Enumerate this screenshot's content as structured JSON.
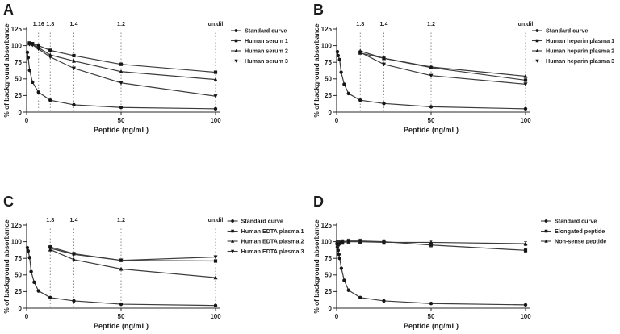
{
  "figure": {
    "background": "#ffffff",
    "axis_color": "#2a2a2a",
    "line_color": "#3c3c3c",
    "marker_color": "#161616",
    "dotted_color": "#7f7f7f",
    "text_color": "#1f1f1f"
  },
  "chart_data": [
    {
      "panel": "A",
      "type": "line",
      "title": "",
      "xlabel": "Peptide (ng/mL)",
      "ylabel": "% of background absorbance",
      "xlim": [
        0,
        100
      ],
      "ylim": [
        0,
        125
      ],
      "xticks": [
        0,
        50,
        100
      ],
      "yticks": [
        0,
        25,
        50,
        75,
        100,
        125
      ],
      "grid": false,
      "legend_position": "right",
      "dilution_marks": [
        {
          "label": "1:16",
          "x": 6.3
        },
        {
          "label": "1:8",
          "x": 12.5
        },
        {
          "label": "1:4",
          "x": 25
        },
        {
          "label": "1:2",
          "x": 50
        },
        {
          "label": "un.dil",
          "x": 100
        }
      ],
      "series": [
        {
          "name": "Standard curve",
          "marker": "circle",
          "x": [
            0.4,
            0.8,
            1.6,
            3.1,
            6.3,
            12.5,
            25,
            50,
            100
          ],
          "y": [
            90,
            82,
            63,
            45,
            30,
            18,
            11,
            7,
            5
          ]
        },
        {
          "name": "Human serum 1",
          "marker": "square",
          "x": [
            1.5,
            3.1,
            6.3,
            12.5,
            25,
            50,
            100
          ],
          "y": [
            104,
            103,
            100,
            93,
            85,
            72,
            60
          ]
        },
        {
          "name": "Human serum 2",
          "marker": "triangle-up",
          "x": [
            1.5,
            3.1,
            6.3,
            12.5,
            25,
            50,
            100
          ],
          "y": [
            103,
            102,
            97,
            86,
            77,
            61,
            49
          ]
        },
        {
          "name": "Human serum 3",
          "marker": "triangle-down",
          "x": [
            1.5,
            3.1,
            6.3,
            12.5,
            25,
            50,
            100
          ],
          "y": [
            102,
            101,
            95,
            83,
            66,
            44,
            24
          ]
        }
      ]
    },
    {
      "panel": "B",
      "type": "line",
      "title": "",
      "xlabel": "Peptide (ng/mL)",
      "ylabel": "% of background absorbance",
      "xlim": [
        0,
        100
      ],
      "ylim": [
        0,
        125
      ],
      "xticks": [
        0,
        50,
        100
      ],
      "yticks": [
        0,
        25,
        50,
        75,
        100,
        125
      ],
      "grid": false,
      "legend_position": "right",
      "dilution_marks": [
        {
          "label": "1:8",
          "x": 12.5
        },
        {
          "label": "1:4",
          "x": 25
        },
        {
          "label": "1:2",
          "x": 50
        },
        {
          "label": "un.dil",
          "x": 100
        }
      ],
      "series": [
        {
          "name": "Standard curve",
          "marker": "circle",
          "x": [
            0.4,
            0.8,
            1.6,
            2.4,
            4,
            6.3,
            12.5,
            25,
            50,
            100
          ],
          "y": [
            91,
            85,
            79,
            60,
            42,
            28,
            18,
            13,
            8,
            5
          ]
        },
        {
          "name": "Human heparin plasma 1",
          "marker": "square",
          "x": [
            12.5,
            25,
            50,
            100
          ],
          "y": [
            89,
            81,
            67,
            48
          ]
        },
        {
          "name": "Human heparin plasma 2",
          "marker": "triangle-up",
          "x": [
            12.5,
            25,
            50,
            100
          ],
          "y": [
            92,
            81,
            68,
            54
          ]
        },
        {
          "name": "Human heparin plasma 3",
          "marker": "triangle-down",
          "x": [
            12.5,
            25,
            50,
            100
          ],
          "y": [
            90,
            72,
            55,
            42
          ]
        }
      ]
    },
    {
      "panel": "C",
      "type": "line",
      "title": "",
      "xlabel": "Peptide (ng/mL)",
      "ylabel": "% of background absorbance",
      "xlim": [
        0,
        100
      ],
      "ylim": [
        0,
        125
      ],
      "xticks": [
        0,
        50,
        100
      ],
      "yticks": [
        0,
        25,
        50,
        75,
        100,
        125
      ],
      "grid": false,
      "legend_position": "right",
      "dilution_marks": [
        {
          "label": "1:8",
          "x": 12.5
        },
        {
          "label": "1:4",
          "x": 25
        },
        {
          "label": "1:2",
          "x": 50
        },
        {
          "label": "un.dil",
          "x": 100
        }
      ],
      "series": [
        {
          "name": "Standard curve",
          "marker": "circle",
          "x": [
            0.4,
            0.8,
            1.6,
            2.4,
            4,
            6.3,
            12.5,
            25,
            50,
            100
          ],
          "y": [
            91,
            86,
            76,
            55,
            39,
            26,
            16,
            11,
            6,
            4
          ]
        },
        {
          "name": "Human EDTA plasma 1",
          "marker": "square",
          "x": [
            12.5,
            25,
            50,
            100
          ],
          "y": [
            92,
            82,
            72,
            71
          ]
        },
        {
          "name": "Human EDTA plasma 2",
          "marker": "triangle-up",
          "x": [
            12.5,
            25,
            50,
            100
          ],
          "y": [
            88,
            73,
            59,
            46
          ]
        },
        {
          "name": "Human EDTA plasma 3",
          "marker": "triangle-down",
          "x": [
            12.5,
            25,
            50,
            100
          ],
          "y": [
            90,
            81,
            72,
            77
          ]
        }
      ]
    },
    {
      "panel": "D",
      "type": "line",
      "title": "",
      "xlabel": "Peptide (ng/mL)",
      "ylabel": "% of background absorbance",
      "xlim": [
        0,
        100
      ],
      "ylim": [
        0,
        125
      ],
      "xticks": [
        0,
        50,
        100
      ],
      "yticks": [
        0,
        25,
        50,
        75,
        100,
        125
      ],
      "grid": false,
      "legend_position": "right",
      "dilution_marks": [],
      "series": [
        {
          "name": "Standard curve",
          "marker": "circle",
          "x": [
            0.2,
            0.4,
            0.8,
            1.2,
            1.6,
            2.5,
            4,
            6.3,
            12.5,
            25,
            50,
            100
          ],
          "y": [
            97,
            92,
            87,
            81,
            75,
            60,
            42,
            27,
            16,
            11,
            7,
            5
          ]
        },
        {
          "name": "Elongated peptide",
          "marker": "square",
          "error": 3,
          "x": [
            0.4,
            0.8,
            1.6,
            3.1,
            6.3,
            12.5,
            25,
            50,
            100
          ],
          "y": [
            99,
            98,
            99,
            100,
            101,
            101,
            100,
            95,
            87
          ]
        },
        {
          "name": "Non-sense peptide",
          "marker": "triangle-up",
          "error": 3,
          "x": [
            0.4,
            0.8,
            1.6,
            3.1,
            6.3,
            12.5,
            25,
            50,
            100
          ],
          "y": [
            97,
            96,
            98,
            99,
            100,
            100,
            99,
            99,
            97
          ]
        }
      ]
    }
  ]
}
